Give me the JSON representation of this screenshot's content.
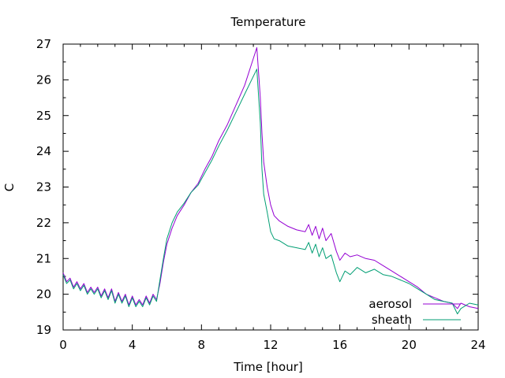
{
  "chart_data": {
    "type": "line",
    "title": "Temperature",
    "xlabel": "Time [hour]",
    "ylabel": "C",
    "xlim": [
      0,
      24
    ],
    "ylim": [
      19,
      27
    ],
    "xticks": [
      0,
      4,
      8,
      12,
      16,
      20,
      24
    ],
    "yticks": [
      19,
      20,
      21,
      22,
      23,
      24,
      25,
      26,
      27
    ],
    "grid": false,
    "legend_position": "bottom-right",
    "series": [
      {
        "name": "aerosol",
        "color": "#9400d3",
        "points": [
          [
            0,
            20.6
          ],
          [
            0.2,
            20.35
          ],
          [
            0.4,
            20.45
          ],
          [
            0.6,
            20.2
          ],
          [
            0.8,
            20.35
          ],
          [
            1.0,
            20.15
          ],
          [
            1.2,
            20.3
          ],
          [
            1.4,
            20.05
          ],
          [
            1.6,
            20.2
          ],
          [
            1.8,
            20.05
          ],
          [
            2.0,
            20.2
          ],
          [
            2.2,
            19.95
          ],
          [
            2.4,
            20.15
          ],
          [
            2.6,
            19.9
          ],
          [
            2.8,
            20.15
          ],
          [
            3.0,
            19.8
          ],
          [
            3.2,
            20.05
          ],
          [
            3.4,
            19.8
          ],
          [
            3.6,
            20.0
          ],
          [
            3.8,
            19.7
          ],
          [
            4.0,
            19.95
          ],
          [
            4.2,
            19.7
          ],
          [
            4.4,
            19.85
          ],
          [
            4.6,
            19.7
          ],
          [
            4.8,
            19.95
          ],
          [
            5.0,
            19.75
          ],
          [
            5.2,
            20.0
          ],
          [
            5.4,
            19.85
          ],
          [
            5.6,
            20.3
          ],
          [
            5.8,
            20.9
          ],
          [
            6.0,
            21.4
          ],
          [
            6.3,
            21.85
          ],
          [
            6.6,
            22.2
          ],
          [
            7.0,
            22.5
          ],
          [
            7.4,
            22.85
          ],
          [
            7.8,
            23.1
          ],
          [
            8.2,
            23.5
          ],
          [
            8.6,
            23.85
          ],
          [
            9.0,
            24.3
          ],
          [
            9.5,
            24.75
          ],
          [
            10.0,
            25.3
          ],
          [
            10.5,
            25.85
          ],
          [
            11.0,
            26.6
          ],
          [
            11.2,
            26.9
          ],
          [
            11.4,
            25.5
          ],
          [
            11.5,
            24.5
          ],
          [
            11.6,
            23.7
          ],
          [
            11.8,
            23.0
          ],
          [
            12.0,
            22.5
          ],
          [
            12.2,
            22.2
          ],
          [
            12.5,
            22.05
          ],
          [
            13.0,
            21.9
          ],
          [
            13.5,
            21.8
          ],
          [
            14.0,
            21.75
          ],
          [
            14.2,
            21.95
          ],
          [
            14.4,
            21.65
          ],
          [
            14.6,
            21.9
          ],
          [
            14.8,
            21.55
          ],
          [
            15.0,
            21.85
          ],
          [
            15.2,
            21.5
          ],
          [
            15.5,
            21.7
          ],
          [
            15.8,
            21.2
          ],
          [
            16.0,
            20.95
          ],
          [
            16.3,
            21.15
          ],
          [
            16.6,
            21.05
          ],
          [
            17.0,
            21.1
          ],
          [
            17.5,
            21.0
          ],
          [
            18.0,
            20.95
          ],
          [
            18.5,
            20.8
          ],
          [
            19.0,
            20.65
          ],
          [
            19.5,
            20.5
          ],
          [
            20.0,
            20.35
          ],
          [
            20.5,
            20.2
          ],
          [
            21.0,
            20.0
          ],
          [
            21.5,
            19.9
          ],
          [
            22.0,
            19.8
          ],
          [
            22.5,
            19.75
          ],
          [
            22.8,
            19.6
          ],
          [
            23.0,
            19.75
          ],
          [
            23.5,
            19.65
          ],
          [
            24.0,
            19.6
          ]
        ]
      },
      {
        "name": "sheath",
        "color": "#009e73",
        "points": [
          [
            0,
            20.55
          ],
          [
            0.2,
            20.3
          ],
          [
            0.4,
            20.4
          ],
          [
            0.6,
            20.15
          ],
          [
            0.8,
            20.3
          ],
          [
            1.0,
            20.1
          ],
          [
            1.2,
            20.25
          ],
          [
            1.4,
            20.0
          ],
          [
            1.6,
            20.15
          ],
          [
            1.8,
            20.0
          ],
          [
            2.0,
            20.15
          ],
          [
            2.2,
            19.9
          ],
          [
            2.4,
            20.1
          ],
          [
            2.6,
            19.85
          ],
          [
            2.8,
            20.1
          ],
          [
            3.0,
            19.75
          ],
          [
            3.2,
            20.0
          ],
          [
            3.4,
            19.75
          ],
          [
            3.6,
            19.95
          ],
          [
            3.8,
            19.65
          ],
          [
            4.0,
            19.9
          ],
          [
            4.2,
            19.65
          ],
          [
            4.4,
            19.8
          ],
          [
            4.6,
            19.65
          ],
          [
            4.8,
            19.9
          ],
          [
            5.0,
            19.7
          ],
          [
            5.2,
            19.95
          ],
          [
            5.4,
            19.8
          ],
          [
            5.6,
            20.4
          ],
          [
            5.8,
            21.0
          ],
          [
            6.0,
            21.55
          ],
          [
            6.3,
            22.0
          ],
          [
            6.6,
            22.3
          ],
          [
            7.0,
            22.55
          ],
          [
            7.4,
            22.85
          ],
          [
            7.8,
            23.05
          ],
          [
            8.2,
            23.4
          ],
          [
            8.6,
            23.75
          ],
          [
            9.0,
            24.15
          ],
          [
            9.5,
            24.6
          ],
          [
            10.0,
            25.1
          ],
          [
            10.5,
            25.6
          ],
          [
            11.0,
            26.1
          ],
          [
            11.2,
            26.3
          ],
          [
            11.4,
            24.8
          ],
          [
            11.5,
            23.5
          ],
          [
            11.6,
            22.8
          ],
          [
            11.8,
            22.3
          ],
          [
            12.0,
            21.75
          ],
          [
            12.2,
            21.55
          ],
          [
            12.5,
            21.5
          ],
          [
            13.0,
            21.35
          ],
          [
            13.5,
            21.3
          ],
          [
            14.0,
            21.25
          ],
          [
            14.2,
            21.45
          ],
          [
            14.4,
            21.15
          ],
          [
            14.6,
            21.4
          ],
          [
            14.8,
            21.05
          ],
          [
            15.0,
            21.3
          ],
          [
            15.2,
            21.0
          ],
          [
            15.5,
            21.1
          ],
          [
            15.8,
            20.6
          ],
          [
            16.0,
            20.35
          ],
          [
            16.3,
            20.65
          ],
          [
            16.6,
            20.55
          ],
          [
            17.0,
            20.75
          ],
          [
            17.5,
            20.6
          ],
          [
            18.0,
            20.7
          ],
          [
            18.5,
            20.55
          ],
          [
            19.0,
            20.5
          ],
          [
            19.5,
            20.4
          ],
          [
            20.0,
            20.3
          ],
          [
            20.5,
            20.15
          ],
          [
            21.0,
            20.0
          ],
          [
            21.5,
            19.85
          ],
          [
            22.0,
            19.8
          ],
          [
            22.5,
            19.75
          ],
          [
            22.8,
            19.45
          ],
          [
            23.0,
            19.6
          ],
          [
            23.5,
            19.75
          ],
          [
            24.0,
            19.7
          ]
        ]
      }
    ]
  }
}
